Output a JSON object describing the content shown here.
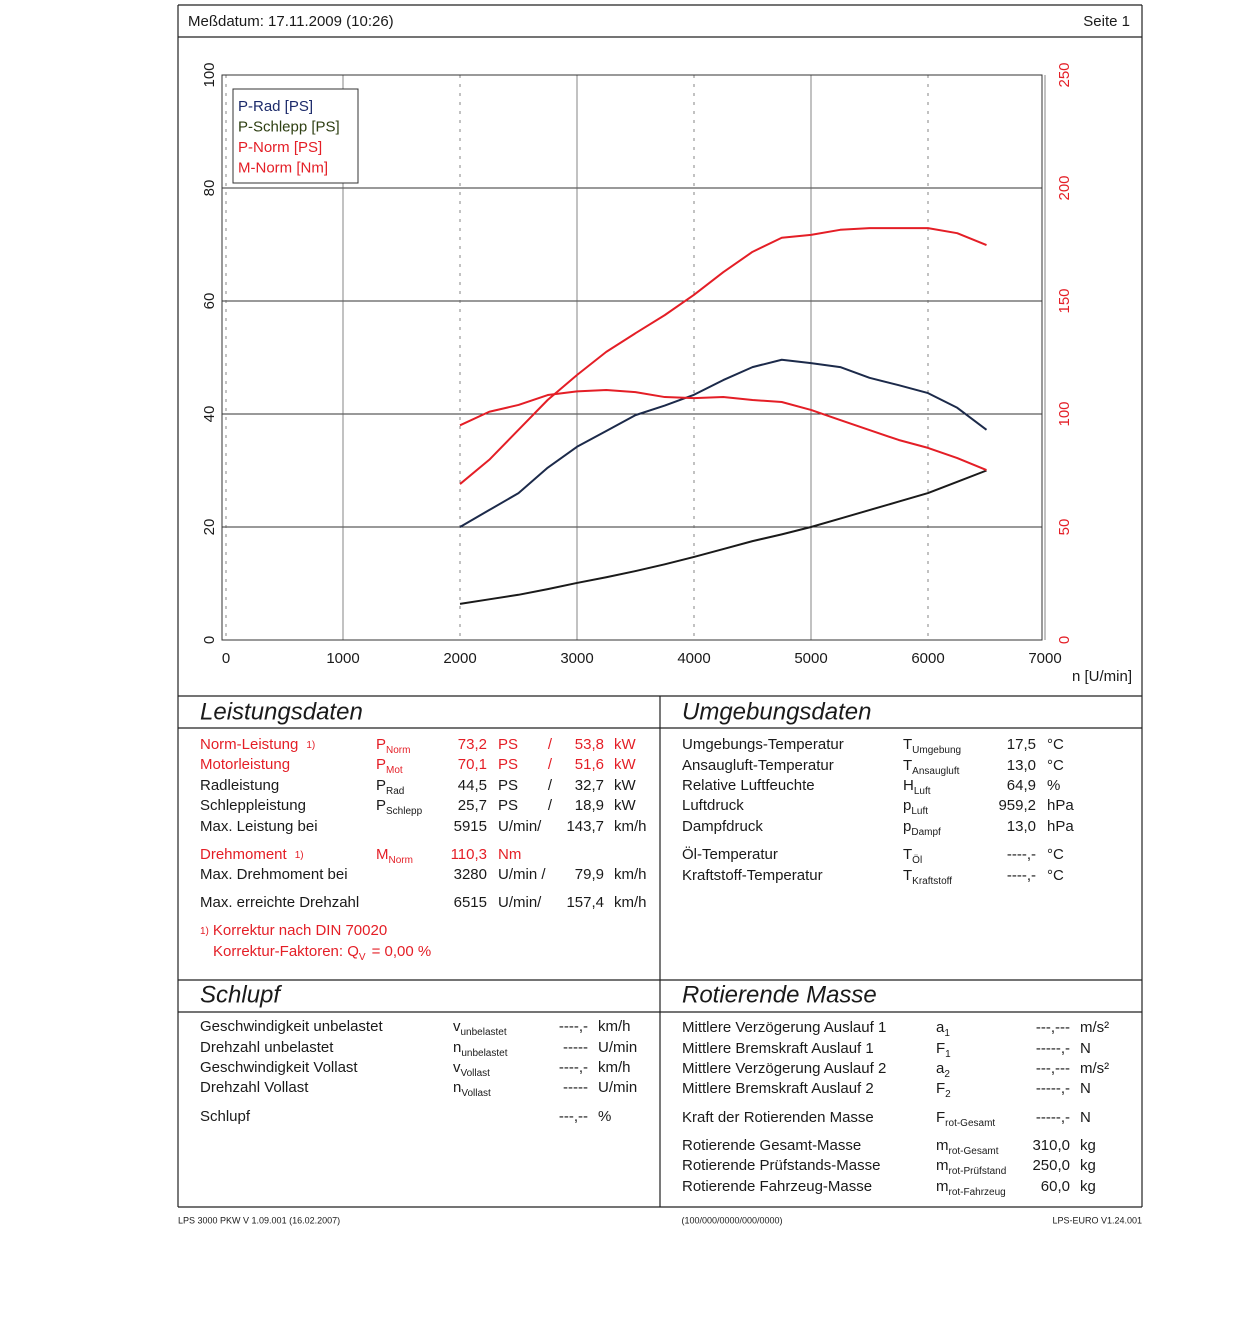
{
  "header": {
    "date": "Meßdatum: 17.11.2009 (10:26)",
    "page": "Seite 1"
  },
  "chart_data": {
    "type": "line",
    "xlabel": "n [U/min]",
    "x": [
      2000,
      2250,
      2500,
      2750,
      3000,
      3250,
      3500,
      3750,
      4000,
      4250,
      4500,
      4750,
      5000,
      5250,
      5500,
      5750,
      6000,
      6250,
      6500
    ],
    "series": [
      {
        "name": "P-Rad [PS]",
        "color": "#1c2a4a",
        "legend_color": "#1c2a6a",
        "values": [
          20,
          23,
          26,
          30.5,
          34.2,
          37,
          39.8,
          41.5,
          43.4,
          46,
          48.3,
          49.6,
          49,
          48.3,
          46.4,
          45.1,
          43.7,
          41.1,
          37.2
        ]
      },
      {
        "name": "P-Schlepp [PS]",
        "color": "#1a1a1a",
        "legend_color": "#2e3f12",
        "values": [
          6.4,
          7.2,
          8,
          9,
          10.1,
          11.1,
          12.2,
          13.4,
          14.7,
          16.1,
          17.5,
          18.7,
          20,
          21.5,
          23,
          24.5,
          26,
          28,
          30
        ]
      },
      {
        "name": "P-Norm [PS]",
        "color": "#e41e26",
        "legend_color": "#e41e26",
        "values": [
          27.6,
          31.9,
          37.2,
          42.5,
          46.9,
          51,
          54.3,
          57.5,
          61.1,
          65.1,
          68.7,
          71.2,
          71.7,
          72.6,
          72.9,
          72.9,
          72.9,
          72,
          69.9
        ]
      },
      {
        "name": "M-Norm [Nm]",
        "color": "#e41e26",
        "legend_color": "#e41e26",
        "axis": "y2",
        "values": [
          95,
          101,
          104,
          108.4,
          110,
          110.6,
          109.7,
          107.5,
          107,
          107.5,
          106.2,
          105.3,
          101.8,
          97.3,
          92.9,
          88.5,
          85,
          80.5,
          75.2
        ]
      }
    ],
    "xlim": [
      0,
      7000
    ],
    "xticks": [
      0,
      1000,
      2000,
      3000,
      4000,
      5000,
      6000,
      7000
    ],
    "ylim": [
      0,
      100
    ],
    "yticks": [
      0,
      20,
      40,
      60,
      80,
      100
    ],
    "y2lim": [
      0,
      250
    ],
    "y2ticks": [
      0,
      50,
      100,
      150,
      200,
      250
    ],
    "y2_color": "#e41e26",
    "grid": true,
    "legend": "upper left"
  },
  "leistungsdaten": {
    "title": "Leistungsdaten",
    "rows": [
      {
        "highlight": true,
        "label": "Norm-Leistung",
        "note": "1)",
        "sym": "P",
        "sub": "Norm",
        "v1": "73,2",
        "u1": "PS",
        "sep": "/",
        "v2": "53,8",
        "u2": "kW"
      },
      {
        "highlight": true,
        "label": "Motorleistung",
        "sym": "P",
        "sub": "Mot",
        "v1": "70,1",
        "u1": "PS",
        "sep": "/",
        "v2": "51,6",
        "u2": "kW"
      },
      {
        "label": "Radleistung",
        "sym": "P",
        "sub": "Rad",
        "v1": "44,5",
        "u1": "PS",
        "sep": "/",
        "v2": "32,7",
        "u2": "kW"
      },
      {
        "label": "Schleppleistung",
        "sym": "P",
        "sub": "Schlepp",
        "v1": "25,7",
        "u1": "PS",
        "sep": "/",
        "v2": "18,9",
        "u2": "kW"
      },
      {
        "label": "Max. Leistung bei",
        "v1": "5915",
        "u1": "U/min/",
        "v2": "143,7",
        "u2": "km/h"
      },
      {
        "highlight": true,
        "label": "Drehmoment",
        "note": "1)",
        "sym": "M",
        "sub": "Norm",
        "v1": "110,3",
        "u1": "Nm"
      },
      {
        "label": "Max. Drehmoment bei",
        "v1": "3280",
        "u1": "U/min /",
        "v2": "79,9",
        "u2": "km/h"
      },
      {
        "label": "Max. erreichte Drehzahl",
        "v1": "6515",
        "u1": "U/min/",
        "v2": "157,4",
        "u2": "km/h"
      }
    ],
    "footnote": {
      "marker": "1)",
      "text": "Korrektur nach DIN 70020",
      "factor_label": "Korrektur-Faktoren: Q",
      "factor_sub": "V",
      "factor_value": "= 0,00 %"
    }
  },
  "umgebungsdaten": {
    "title": "Umgebungsdaten",
    "rows": [
      {
        "label": "Umgebungs-Temperatur",
        "sym": "T",
        "sub": "Umgebung",
        "value": "17,5",
        "unit": "°C"
      },
      {
        "label": "Ansaugluft-Temperatur",
        "sym": "T",
        "sub": "Ansaugluft",
        "value": "13,0",
        "unit": "°C"
      },
      {
        "label": "Relative Luftfeuchte",
        "sym": "H",
        "sub": "Luft",
        "value": "64,9",
        "unit": "%"
      },
      {
        "label": "Luftdruck",
        "sym": "p",
        "sub": "Luft",
        "value": "959,2",
        "unit": "hPa"
      },
      {
        "label": "Dampfdruck",
        "sym": "p",
        "sub": "Dampf",
        "value": "13,0",
        "unit": "hPa"
      },
      {
        "label": "Öl-Temperatur",
        "sym": "T",
        "sub": "Öl",
        "value": "----,-",
        "unit": "°C"
      },
      {
        "label": "Kraftstoff-Temperatur",
        "sym": "T",
        "sub": "Kraftstoff",
        "value": "----,-",
        "unit": "°C"
      }
    ]
  },
  "schlupf": {
    "title": "Schlupf",
    "rows": [
      {
        "label": "Geschwindigkeit unbelastet",
        "sym": "v",
        "sub": "unbelastet",
        "value": "----,-",
        "unit": "km/h"
      },
      {
        "label": "Drehzahl unbelastet",
        "sym": "n",
        "sub": "unbelastet",
        "value": "-----",
        "unit": "U/min"
      },
      {
        "label": "Geschwindigkeit Vollast",
        "sym": "v",
        "sub": "Vollast",
        "value": "----,-",
        "unit": "km/h"
      },
      {
        "label": "Drehzahl Vollast",
        "sym": "n",
        "sub": "Vollast",
        "value": "-----",
        "unit": "U/min"
      },
      {
        "label": "Schlupf",
        "value": "---,--",
        "unit": "%"
      }
    ]
  },
  "rotierende_masse": {
    "title": "Rotierende Masse",
    "rows": [
      {
        "label": "Mittlere Verzögerung Auslauf 1",
        "sym": "a",
        "sub": "1",
        "value": "---,---",
        "unit": "m/s²"
      },
      {
        "label": "Mittlere Bremskraft Auslauf 1",
        "sym": "F",
        "sub": "1",
        "value": "-----,-",
        "unit": "N"
      },
      {
        "label": "Mittlere Verzögerung Auslauf 2",
        "sym": "a",
        "sub": "2",
        "value": "---,---",
        "unit": "m/s²"
      },
      {
        "label": "Mittlere Bremskraft Auslauf 2",
        "sym": "F",
        "sub": "2",
        "value": "-----,-",
        "unit": "N"
      },
      {
        "label": "Kraft der Rotierenden Masse",
        "sym": "F",
        "sub": "rot-Gesamt",
        "value": "-----,-",
        "unit": "N"
      },
      {
        "label": "Rotierende Gesamt-Masse",
        "sym": "m",
        "sub": "rot-Gesamt",
        "value": "310,0",
        "unit": "kg"
      },
      {
        "label": "Rotierende Prüfstands-Masse",
        "sym": "m",
        "sub": "rot-Prüfstand",
        "value": "250,0",
        "unit": "kg"
      },
      {
        "label": "Rotierende Fahrzeug-Masse",
        "sym": "m",
        "sub": "rot-Fahrzeug",
        "value": "60,0",
        "unit": "kg"
      }
    ]
  },
  "footer": {
    "left": "LPS 3000 PKW V 1.09.001 (16.02.2007)",
    "center": "(100/000/0000/000/0000)",
    "right": "LPS-EURO V1.24.001"
  }
}
